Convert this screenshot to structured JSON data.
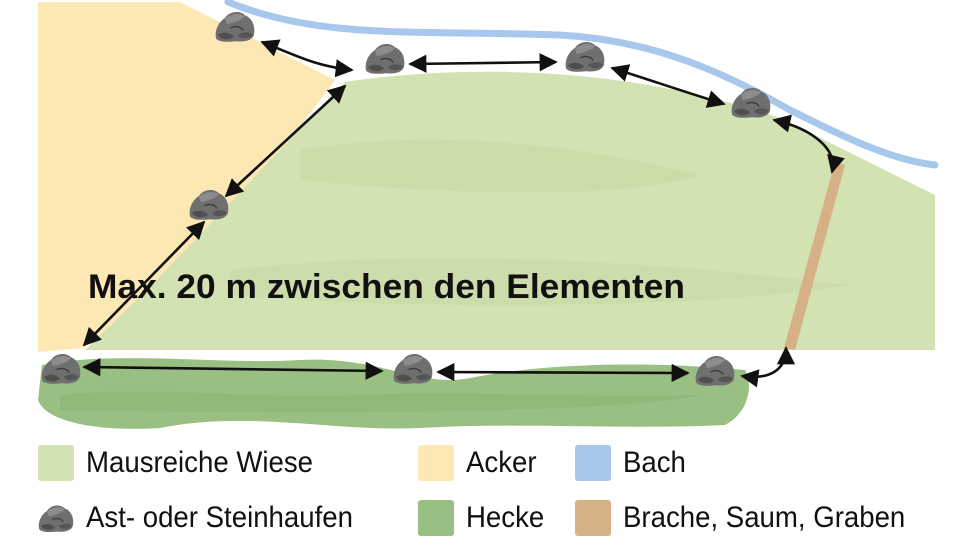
{
  "headline": "Max. 20 m zwischen den Elementen",
  "colors": {
    "wiese": "#d2e2b2",
    "acker": "#fde8b4",
    "bach": "#a7c7ec",
    "hecke": "#9abf82",
    "brache": "#d5b185",
    "heap": "#6d6d6d",
    "arrow": "#111111"
  },
  "legend": [
    {
      "id": "wiese",
      "label": "Mausreiche Wiese",
      "type": "swatch",
      "color": "#d2e2b2"
    },
    {
      "id": "acker",
      "label": "Acker",
      "type": "swatch",
      "color": "#fde8b4"
    },
    {
      "id": "bach",
      "label": "Bach",
      "type": "swatch",
      "color": "#a7c7ec"
    },
    {
      "id": "haufen",
      "label": "Ast- oder Steinhaufen",
      "type": "icon",
      "icon": "stone-heap-icon"
    },
    {
      "id": "hecke",
      "label": "Hecke",
      "type": "swatch",
      "color": "#9abf82"
    },
    {
      "id": "brache",
      "label": "Brache, Saum, Graben",
      "type": "swatch",
      "color": "#d5b185"
    }
  ]
}
